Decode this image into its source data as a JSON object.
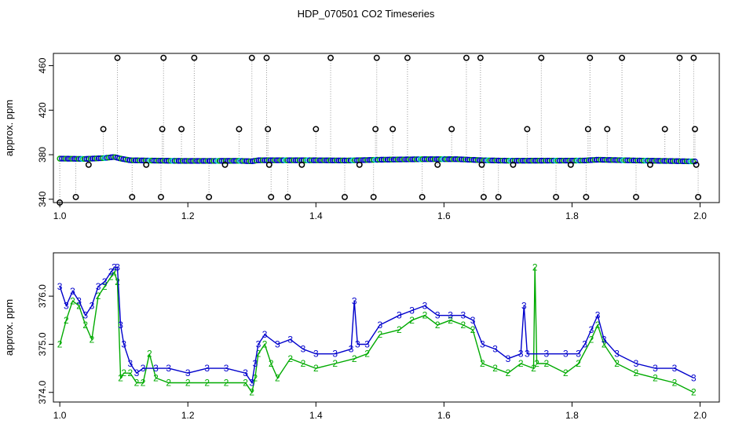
{
  "title": "HDP_070501  CO2 Timeseries",
  "colors": {
    "black": "#000000",
    "blue": "#0000cc",
    "green": "#00aa00",
    "cyan": "#00cccc",
    "gray": "#999999"
  },
  "chart_data": [
    {
      "type": "scatter",
      "ylabel": "approx. ppm",
      "xlim": [
        0.99,
        2.03
      ],
      "ylim": [
        337,
        471
      ],
      "x_ticks": [
        "1.0",
        "1.2",
        "1.4",
        "1.6",
        "1.8",
        "2.0"
      ],
      "y_ticks": [
        "340",
        "380",
        "420",
        "460"
      ],
      "baseline": [
        [
          1.0,
          376.5
        ],
        [
          1.04,
          376.2
        ],
        [
          1.07,
          377.0
        ],
        [
          1.085,
          378.0
        ],
        [
          1.095,
          376.5
        ],
        [
          1.11,
          375.0
        ],
        [
          1.16,
          374.6
        ],
        [
          1.2,
          374.4
        ],
        [
          1.28,
          374.5
        ],
        [
          1.3,
          374.1
        ],
        [
          1.31,
          375.0
        ],
        [
          1.4,
          375.0
        ],
        [
          1.45,
          374.8
        ],
        [
          1.5,
          375.5
        ],
        [
          1.57,
          376.0
        ],
        [
          1.62,
          376.0
        ],
        [
          1.66,
          375.0
        ],
        [
          1.7,
          374.6
        ],
        [
          1.8,
          374.7
        ],
        [
          1.82,
          374.8
        ],
        [
          1.84,
          375.5
        ],
        [
          1.9,
          374.8
        ],
        [
          1.99,
          374.0
        ]
      ],
      "series": [
        {
          "name": "",
          "marker": "circle",
          "points": [
            [
              1.0,
              337
            ],
            [
              1.025,
              342
            ],
            [
              1.045,
              371
            ],
            [
              1.068,
              403
            ],
            [
              1.09,
              467
            ],
            [
              1.113,
              342
            ],
            [
              1.135,
              371
            ],
            [
              1.158,
              342
            ],
            [
              1.16,
              403
            ],
            [
              1.162,
              467
            ],
            [
              1.19,
              403
            ],
            [
              1.21,
              467
            ],
            [
              1.233,
              342
            ],
            [
              1.258,
              371
            ],
            [
              1.28,
              403
            ],
            [
              1.3,
              467
            ],
            [
              1.323,
              467
            ],
            [
              1.325,
              403
            ],
            [
              1.327,
              371
            ],
            [
              1.33,
              342
            ],
            [
              1.356,
              342
            ],
            [
              1.378,
              371
            ],
            [
              1.4,
              403
            ],
            [
              1.423,
              467
            ],
            [
              1.445,
              342
            ],
            [
              1.468,
              371
            ],
            [
              1.49,
              342
            ],
            [
              1.493,
              403
            ],
            [
              1.495,
              467
            ],
            [
              1.52,
              403
            ],
            [
              1.543,
              467
            ],
            [
              1.566,
              342
            ],
            [
              1.59,
              371
            ],
            [
              1.612,
              403
            ],
            [
              1.635,
              467
            ],
            [
              1.657,
              467
            ],
            [
              1.659,
              371
            ],
            [
              1.662,
              342
            ],
            [
              1.685,
              342
            ],
            [
              1.708,
              371
            ],
            [
              1.73,
              403
            ],
            [
              1.752,
              467
            ],
            [
              1.775,
              342
            ],
            [
              1.798,
              371
            ],
            [
              1.822,
              342
            ],
            [
              1.825,
              403
            ],
            [
              1.828,
              467
            ],
            [
              1.855,
              403
            ],
            [
              1.878,
              467
            ],
            [
              1.9,
              342
            ],
            [
              1.922,
              371
            ],
            [
              1.945,
              403
            ],
            [
              1.968,
              467
            ],
            [
              1.99,
              467
            ],
            [
              1.992,
              403
            ],
            [
              1.994,
              371
            ],
            [
              1.997,
              342
            ]
          ]
        }
      ]
    },
    {
      "type": "line",
      "ylabel": "approx. ppm",
      "xlim": [
        0.99,
        2.03
      ],
      "ylim": [
        373.8,
        376.9
      ],
      "x_ticks": [
        "1.0",
        "1.2",
        "1.4",
        "1.6",
        "1.8",
        "2.0"
      ],
      "y_ticks": [
        "374.0",
        "375.0",
        "376.0"
      ],
      "series": [
        {
          "name": "3",
          "marker": "3",
          "points": [
            [
              1.0,
              376.2
            ],
            [
              1.01,
              375.8
            ],
            [
              1.02,
              376.1
            ],
            [
              1.03,
              375.9
            ],
            [
              1.04,
              375.6
            ],
            [
              1.05,
              375.8
            ],
            [
              1.06,
              376.2
            ],
            [
              1.07,
              376.3
            ],
            [
              1.08,
              376.5
            ],
            [
              1.085,
              376.6
            ],
            [
              1.09,
              376.6
            ],
            [
              1.095,
              375.4
            ],
            [
              1.1,
              375.0
            ],
            [
              1.11,
              374.6
            ],
            [
              1.12,
              374.4
            ],
            [
              1.13,
              374.5
            ],
            [
              1.15,
              374.5
            ],
            [
              1.17,
              374.5
            ],
            [
              1.2,
              374.4
            ],
            [
              1.23,
              374.5
            ],
            [
              1.26,
              374.5
            ],
            [
              1.29,
              374.4
            ],
            [
              1.3,
              374.2
            ],
            [
              1.305,
              374.6
            ],
            [
              1.31,
              375.0
            ],
            [
              1.32,
              375.2
            ],
            [
              1.34,
              375.0
            ],
            [
              1.36,
              375.1
            ],
            [
              1.38,
              374.9
            ],
            [
              1.4,
              374.8
            ],
            [
              1.43,
              374.8
            ],
            [
              1.455,
              374.9
            ],
            [
              1.46,
              375.9
            ],
            [
              1.465,
              375.0
            ],
            [
              1.48,
              375.0
            ],
            [
              1.5,
              375.4
            ],
            [
              1.53,
              375.6
            ],
            [
              1.55,
              375.7
            ],
            [
              1.57,
              375.8
            ],
            [
              1.59,
              375.6
            ],
            [
              1.61,
              375.6
            ],
            [
              1.63,
              375.6
            ],
            [
              1.645,
              375.5
            ],
            [
              1.66,
              375.0
            ],
            [
              1.68,
              374.9
            ],
            [
              1.7,
              374.7
            ],
            [
              1.72,
              374.8
            ],
            [
              1.725,
              375.8
            ],
            [
              1.73,
              374.8
            ],
            [
              1.76,
              374.8
            ],
            [
              1.79,
              374.8
            ],
            [
              1.81,
              374.8
            ],
            [
              1.82,
              375.0
            ],
            [
              1.83,
              375.3
            ],
            [
              1.84,
              375.6
            ],
            [
              1.85,
              375.1
            ],
            [
              1.87,
              374.8
            ],
            [
              1.9,
              374.6
            ],
            [
              1.93,
              374.5
            ],
            [
              1.96,
              374.5
            ],
            [
              1.99,
              374.3
            ]
          ]
        },
        {
          "name": "2",
          "marker": "2",
          "points": [
            [
              1.0,
              375.0
            ],
            [
              1.01,
              375.5
            ],
            [
              1.02,
              375.9
            ],
            [
              1.03,
              375.8
            ],
            [
              1.04,
              375.4
            ],
            [
              1.05,
              375.1
            ],
            [
              1.06,
              376.0
            ],
            [
              1.07,
              376.2
            ],
            [
              1.08,
              376.4
            ],
            [
              1.085,
              376.5
            ],
            [
              1.09,
              376.3
            ],
            [
              1.095,
              374.3
            ],
            [
              1.1,
              374.4
            ],
            [
              1.11,
              374.4
            ],
            [
              1.12,
              374.2
            ],
            [
              1.13,
              374.2
            ],
            [
              1.14,
              374.8
            ],
            [
              1.15,
              374.3
            ],
            [
              1.17,
              374.2
            ],
            [
              1.2,
              374.2
            ],
            [
              1.23,
              374.2
            ],
            [
              1.26,
              374.2
            ],
            [
              1.29,
              374.2
            ],
            [
              1.3,
              374.0
            ],
            [
              1.305,
              374.3
            ],
            [
              1.31,
              374.8
            ],
            [
              1.32,
              375.0
            ],
            [
              1.33,
              374.6
            ],
            [
              1.34,
              374.3
            ],
            [
              1.36,
              374.7
            ],
            [
              1.38,
              374.6
            ],
            [
              1.4,
              374.5
            ],
            [
              1.43,
              374.6
            ],
            [
              1.46,
              374.7
            ],
            [
              1.48,
              374.8
            ],
            [
              1.5,
              375.2
            ],
            [
              1.53,
              375.3
            ],
            [
              1.55,
              375.5
            ],
            [
              1.57,
              375.6
            ],
            [
              1.59,
              375.4
            ],
            [
              1.61,
              375.5
            ],
            [
              1.63,
              375.4
            ],
            [
              1.645,
              375.3
            ],
            [
              1.66,
              374.6
            ],
            [
              1.68,
              374.5
            ],
            [
              1.7,
              374.4
            ],
            [
              1.72,
              374.6
            ],
            [
              1.74,
              374.5
            ],
            [
              1.742,
              376.6
            ],
            [
              1.745,
              374.6
            ],
            [
              1.76,
              374.6
            ],
            [
              1.79,
              374.4
            ],
            [
              1.81,
              374.6
            ],
            [
              1.83,
              375.1
            ],
            [
              1.84,
              375.4
            ],
            [
              1.85,
              375.0
            ],
            [
              1.87,
              374.6
            ],
            [
              1.9,
              374.4
            ],
            [
              1.93,
              374.3
            ],
            [
              1.96,
              374.2
            ],
            [
              1.99,
              374.0
            ]
          ]
        }
      ]
    }
  ]
}
